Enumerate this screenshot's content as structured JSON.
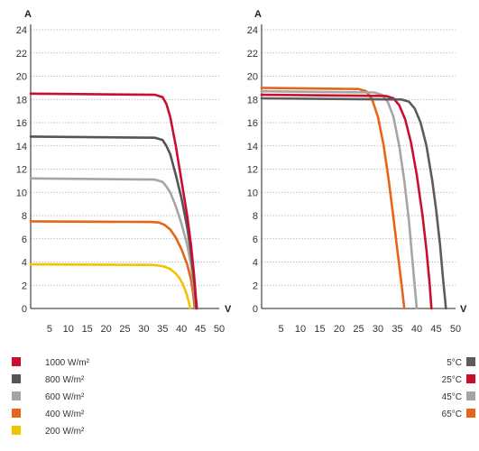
{
  "chart_data": [
    {
      "type": "line",
      "ylabel": "A",
      "xlabel": "V",
      "xlim": [
        0,
        50
      ],
      "ylim": [
        0,
        24
      ],
      "x_ticks": [
        5,
        10,
        15,
        20,
        25,
        30,
        35,
        40,
        45,
        50
      ],
      "y_ticks": [
        0,
        2,
        4,
        6,
        8,
        10,
        12,
        14,
        16,
        18,
        20,
        22,
        24
      ],
      "grid": true,
      "legend_position": "bottom-left",
      "series": [
        {
          "name": "1000 W/m²",
          "color": "#c8102e",
          "points": [
            [
              0,
              18.5
            ],
            [
              33,
              18.4
            ],
            [
              35,
              18.2
            ],
            [
              36,
              17.6
            ],
            [
              37,
              16.5
            ],
            [
              38.5,
              14
            ],
            [
              40,
              11
            ],
            [
              41.5,
              8
            ],
            [
              42.5,
              5.5
            ],
            [
              43.3,
              3
            ],
            [
              43.8,
              1
            ],
            [
              44.1,
              0
            ]
          ]
        },
        {
          "name": "800 W/m²",
          "color": "#555555",
          "points": [
            [
              0,
              14.8
            ],
            [
              33,
              14.7
            ],
            [
              35,
              14.5
            ],
            [
              36,
              14.0
            ],
            [
              37,
              13.3
            ],
            [
              38.5,
              11.5
            ],
            [
              40,
              9.5
            ],
            [
              41.5,
              7
            ],
            [
              42.5,
              4.8
            ],
            [
              43.3,
              2.5
            ],
            [
              43.7,
              1
            ],
            [
              43.9,
              0
            ]
          ]
        },
        {
          "name": "600 W/m²",
          "color": "#a5a5a5",
          "points": [
            [
              0,
              11.2
            ],
            [
              33,
              11.1
            ],
            [
              35,
              10.9
            ],
            [
              36,
              10.5
            ],
            [
              37,
              10.0
            ],
            [
              38.5,
              8.8
            ],
            [
              40,
              7.3
            ],
            [
              41.5,
              5.5
            ],
            [
              42.5,
              3.8
            ],
            [
              43.2,
              2
            ],
            [
              43.6,
              0.8
            ],
            [
              43.7,
              0
            ]
          ]
        },
        {
          "name": "400 W/m²",
          "color": "#e8641b",
          "points": [
            [
              0,
              7.5
            ],
            [
              32,
              7.45
            ],
            [
              34,
              7.4
            ],
            [
              35.5,
              7.2
            ],
            [
              37,
              6.8
            ],
            [
              38.5,
              6.1
            ],
            [
              40,
              5.1
            ],
            [
              41.5,
              3.8
            ],
            [
              42.5,
              2.5
            ],
            [
              43.1,
              1.2
            ],
            [
              43.5,
              0
            ]
          ]
        },
        {
          "name": "200 W/m²",
          "color": "#f2c400",
          "points": [
            [
              0,
              3.8
            ],
            [
              32,
              3.75
            ],
            [
              34,
              3.7
            ],
            [
              35.5,
              3.6
            ],
            [
              37,
              3.4
            ],
            [
              38.5,
              3.0
            ],
            [
              39.5,
              2.6
            ],
            [
              40.5,
              2.0
            ],
            [
              41.3,
              1.3
            ],
            [
              42,
              0.5
            ],
            [
              42.3,
              0
            ]
          ]
        }
      ]
    },
    {
      "type": "line",
      "ylabel": "A",
      "xlabel": "V",
      "xlim": [
        0,
        50
      ],
      "ylim": [
        0,
        24
      ],
      "x_ticks": [
        5,
        10,
        15,
        20,
        25,
        30,
        35,
        40,
        45,
        50
      ],
      "y_ticks": [
        0,
        2,
        4,
        6,
        8,
        10,
        12,
        14,
        16,
        18,
        20,
        22,
        24
      ],
      "grid": true,
      "legend_position": "bottom-right",
      "series": [
        {
          "name": "5°C",
          "color": "#5c5c5c",
          "points": [
            [
              0,
              18.1
            ],
            [
              36,
              18.0
            ],
            [
              38,
              17.8
            ],
            [
              39.5,
              17.2
            ],
            [
              41,
              16
            ],
            [
              42.5,
              14
            ],
            [
              44,
              11
            ],
            [
              45,
              8.5
            ],
            [
              46,
              5.5
            ],
            [
              46.8,
              2.5
            ],
            [
              47.3,
              0.8
            ],
            [
              47.5,
              0
            ]
          ]
        },
        {
          "name": "25°C",
          "color": "#c8102e",
          "points": [
            [
              0,
              18.4
            ],
            [
              32,
              18.3
            ],
            [
              34,
              18.1
            ],
            [
              35.5,
              17.5
            ],
            [
              37,
              16.3
            ],
            [
              38.5,
              14.3
            ],
            [
              40,
              11.5
            ],
            [
              41.5,
              8
            ],
            [
              42.5,
              5
            ],
            [
              43.3,
              2.2
            ],
            [
              43.8,
              0
            ]
          ]
        },
        {
          "name": "45°C",
          "color": "#a5a5a5",
          "points": [
            [
              0,
              18.7
            ],
            [
              29,
              18.6
            ],
            [
              31,
              18.4
            ],
            [
              32.5,
              17.8
            ],
            [
              34,
              16.5
            ],
            [
              35.5,
              14
            ],
            [
              36.8,
              11
            ],
            [
              38,
              7.5
            ],
            [
              38.8,
              4.5
            ],
            [
              39.5,
              1.8
            ],
            [
              40,
              0
            ]
          ]
        },
        {
          "name": "65°C",
          "color": "#e8641b",
          "points": [
            [
              0,
              19.0
            ],
            [
              25,
              18.9
            ],
            [
              27,
              18.7
            ],
            [
              28.5,
              18
            ],
            [
              30,
              16.5
            ],
            [
              31.5,
              14
            ],
            [
              32.8,
              11
            ],
            [
              34,
              7.8
            ],
            [
              35,
              5
            ],
            [
              36,
              2.3
            ],
            [
              36.8,
              0
            ]
          ]
        }
      ]
    }
  ]
}
